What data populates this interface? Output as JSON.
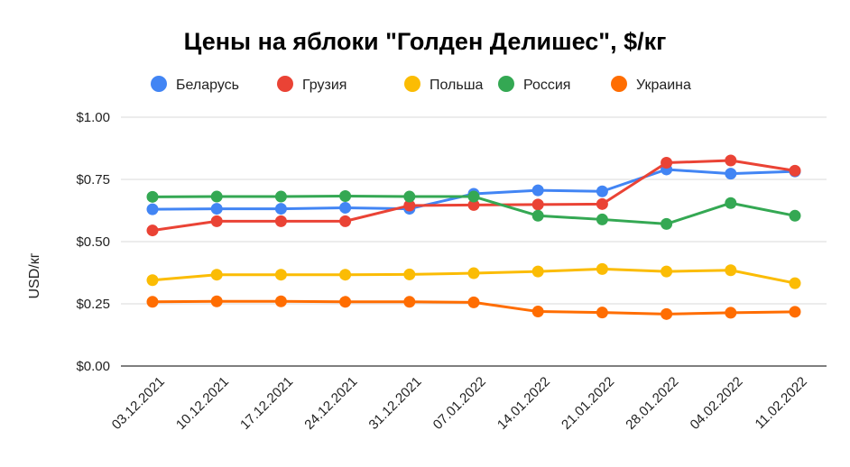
{
  "chart_data": {
    "type": "line",
    "title": "Цены на яблоки \"Голден Делишес\", $/кг",
    "ylabel": "USD/кг",
    "xlabel": "",
    "x": [
      "03.12.2021",
      "10.12.2021",
      "17.12.2021",
      "24.12.2021",
      "31.12.2021",
      "07.01.2022",
      "14.01.2022",
      "21.01.2022",
      "28.01.2022",
      "04.02.2022",
      "11.02.2022"
    ],
    "ylim": [
      0,
      1
    ],
    "yticks": [
      {
        "value": 0,
        "label": "$0.00"
      },
      {
        "value": 0.25,
        "label": "$0.25"
      },
      {
        "value": 0.5,
        "label": "$0.50"
      },
      {
        "value": 0.75,
        "label": "$0.75"
      },
      {
        "value": 1,
        "label": "$1.00"
      }
    ],
    "grid": true,
    "legend_position": "top",
    "series": [
      {
        "name": "Беларусь",
        "color": "#4285F4",
        "values": [
          0.63,
          0.632,
          0.632,
          0.636,
          0.632,
          0.692,
          0.706,
          0.702,
          0.79,
          0.773,
          0.782
        ]
      },
      {
        "name": "Грузия",
        "color": "#EA4335",
        "values": [
          0.545,
          0.582,
          0.582,
          0.582,
          0.645,
          0.647,
          0.649,
          0.651,
          0.817,
          0.826,
          0.785
        ]
      },
      {
        "name": "Польша",
        "color": "#FBBC04",
        "values": [
          0.345,
          0.367,
          0.367,
          0.367,
          0.368,
          0.373,
          0.38,
          0.39,
          0.38,
          0.385,
          0.333
        ]
      },
      {
        "name": "Россия",
        "color": "#34A853",
        "values": [
          0.68,
          0.681,
          0.681,
          0.683,
          0.681,
          0.681,
          0.604,
          0.589,
          0.571,
          0.655,
          0.604
        ]
      },
      {
        "name": "Украина",
        "color": "#FF6D01",
        "values": [
          0.258,
          0.26,
          0.26,
          0.258,
          0.258,
          0.256,
          0.219,
          0.215,
          0.209,
          0.214,
          0.218
        ]
      }
    ]
  }
}
